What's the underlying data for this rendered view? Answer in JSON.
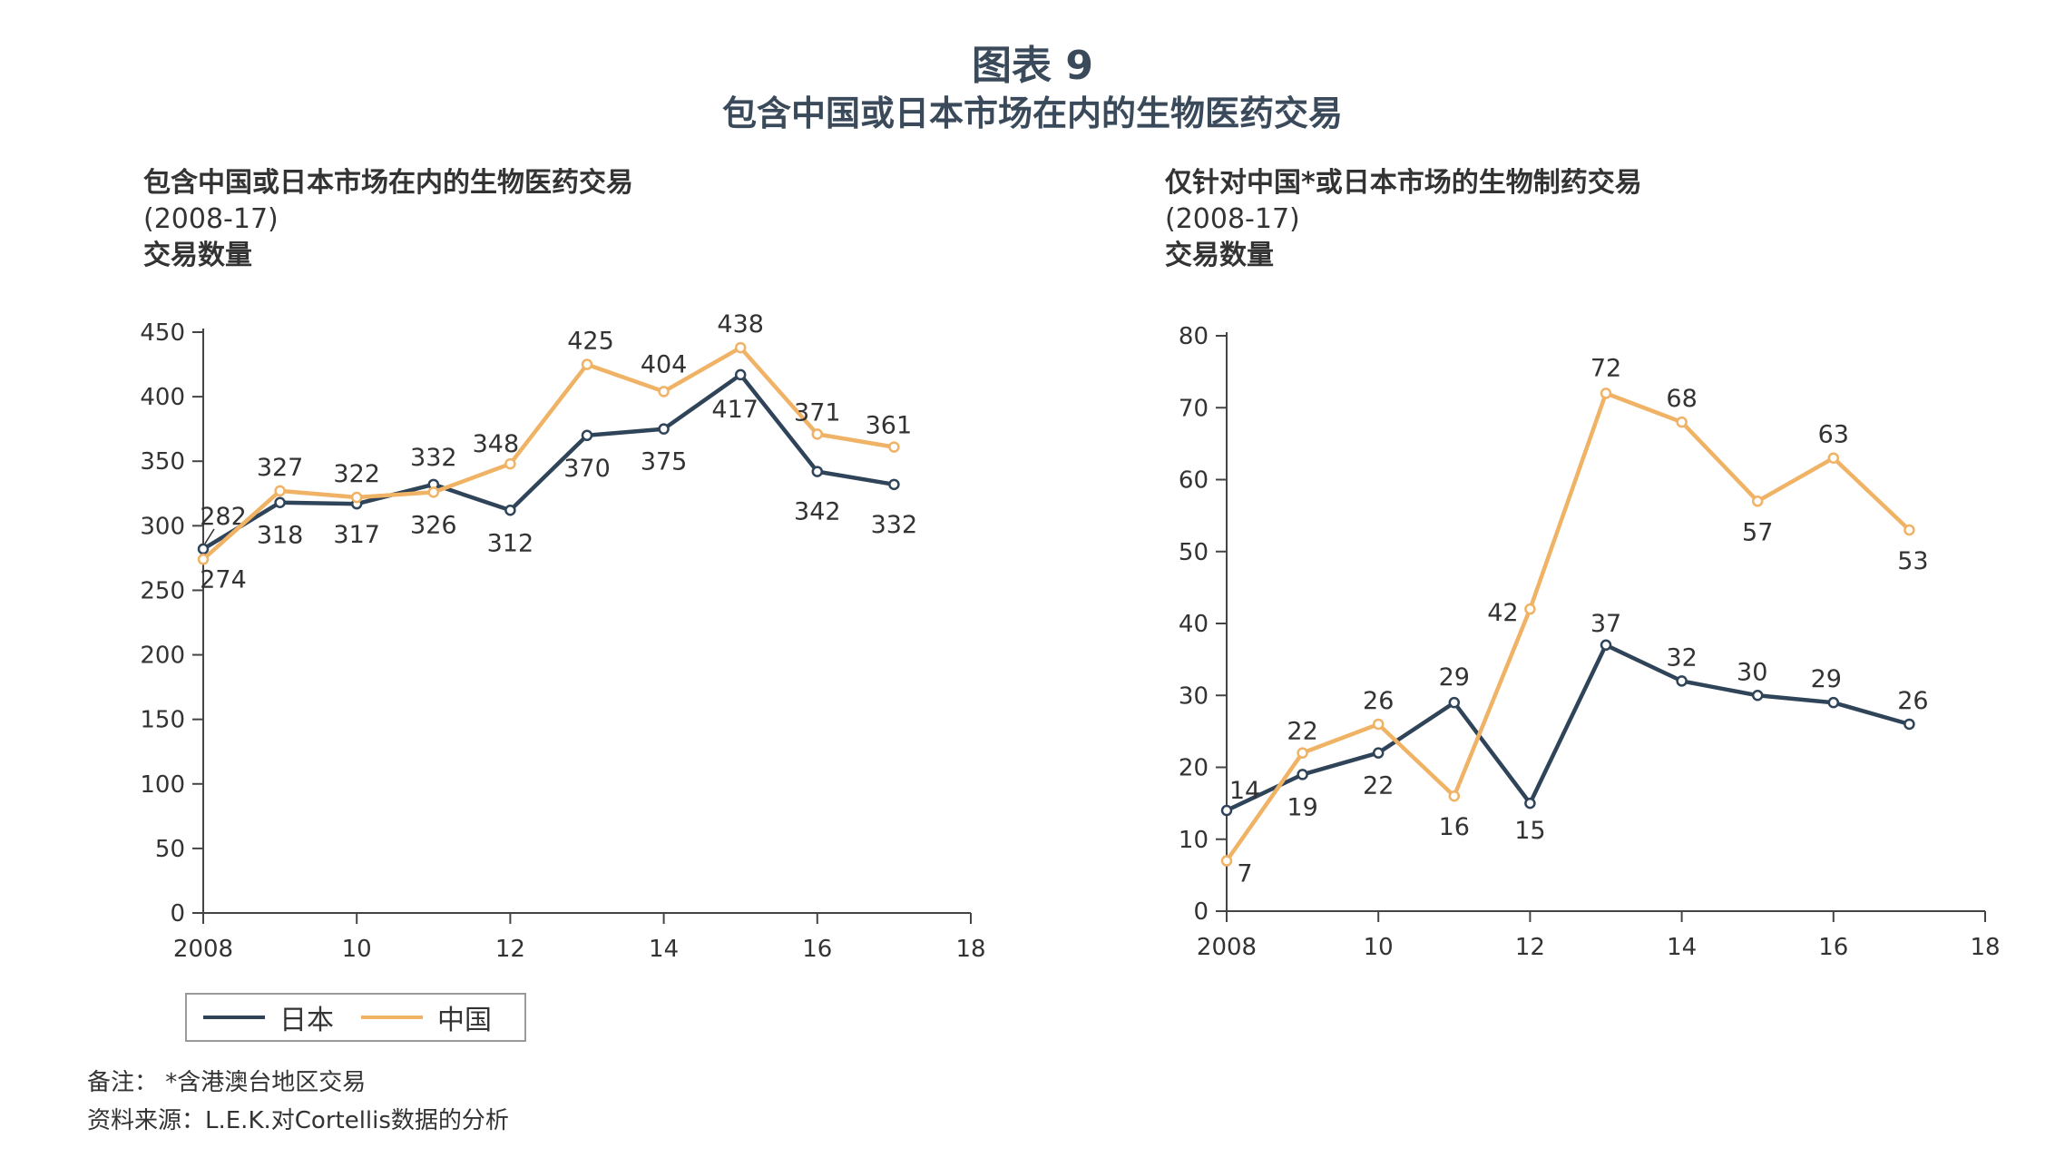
{
  "figure": {
    "title": "图表 9",
    "subtitle": "包含中国或日本市场在内的生物医药交易"
  },
  "colors": {
    "japan": "#2f4458",
    "china": "#f0b264",
    "axis": "#444444"
  },
  "legend": {
    "japan": "日本",
    "china": "中国"
  },
  "notes": {
    "note": "备注：  *含港澳台地区交易",
    "source": "资料来源：L.E.K.对Cortellis数据的分析"
  },
  "chart_data": [
    {
      "type": "line",
      "title": "包含中国或日本市场在内的生物医药交易",
      "period": "(2008-17)",
      "ylabel": "交易数量",
      "xlim": [
        2008,
        2018
      ],
      "ylim": [
        0,
        450
      ],
      "yticks": [
        0,
        50,
        100,
        150,
        200,
        250,
        300,
        350,
        400,
        450
      ],
      "xticks": [
        2008,
        2010,
        2012,
        2014,
        2016,
        2018
      ],
      "xtick_labels": [
        "2008",
        "10",
        "12",
        "14",
        "16",
        "18"
      ],
      "x": [
        2008,
        2009,
        2010,
        2011,
        2012,
        2013,
        2014,
        2015,
        2016,
        2017
      ],
      "grid": false,
      "legend_position": "bottom-left",
      "series": [
        {
          "name": "日本",
          "color_key": "japan",
          "values": [
            282,
            318,
            317,
            332,
            312,
            370,
            375,
            417,
            342,
            332
          ]
        },
        {
          "name": "中国",
          "color_key": "china",
          "values": [
            274,
            327,
            322,
            326,
            348,
            425,
            404,
            438,
            371,
            361
          ]
        }
      ]
    },
    {
      "type": "line",
      "title": "仅针对中国*或日本市场的生物制药交易",
      "period": "(2008-17)",
      "ylabel": "交易数量",
      "xlim": [
        2008,
        2018
      ],
      "ylim": [
        0,
        80
      ],
      "yticks": [
        0,
        10,
        20,
        30,
        40,
        50,
        60,
        70,
        80
      ],
      "xticks": [
        2008,
        2010,
        2012,
        2014,
        2016,
        2018
      ],
      "xtick_labels": [
        "2008",
        "10",
        "12",
        "14",
        "16",
        "18"
      ],
      "x": [
        2008,
        2009,
        2010,
        2011,
        2012,
        2013,
        2014,
        2015,
        2016,
        2017
      ],
      "grid": false,
      "series": [
        {
          "name": "日本",
          "color_key": "japan",
          "values": [
            14,
            19,
            22,
            29,
            15,
            37,
            32,
            30,
            29,
            26
          ]
        },
        {
          "name": "中国",
          "color_key": "china",
          "values": [
            7,
            22,
            26,
            16,
            42,
            72,
            68,
            57,
            63,
            53
          ]
        }
      ]
    }
  ]
}
